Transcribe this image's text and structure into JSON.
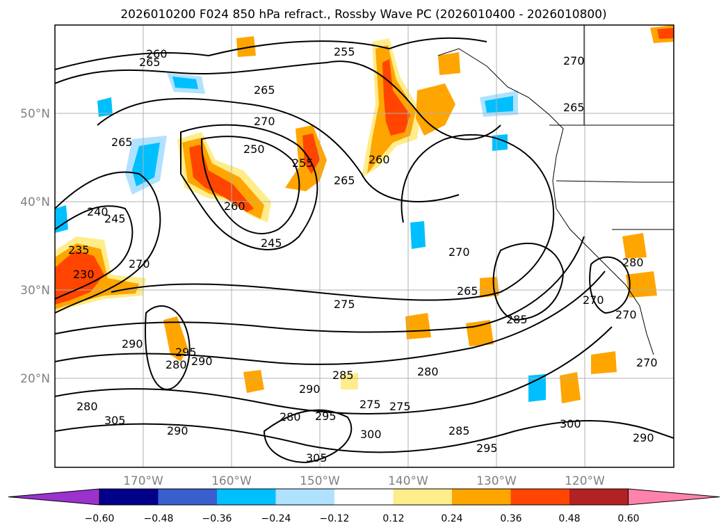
{
  "title": "2026010200 F024 850 hPa refract., Rossby Wave PC (2026010400 - 2026010800)",
  "lat_labels": [
    "50°N",
    "40°N",
    "30°N",
    "20°N"
  ],
  "lon_labels": [
    "170°W",
    "160°W",
    "150°W",
    "140°W",
    "130°W",
    "120°W"
  ],
  "colorbar": {
    "tick_labels": [
      "−0.60",
      "−0.48",
      "−0.36",
      "−0.24",
      "−0.12",
      "0.12",
      "0.24",
      "0.36",
      "0.48",
      "0.60"
    ],
    "colors": [
      "#9a32cd",
      "#00008b",
      "#3a5fcd",
      "#00bfff",
      "#b0e2ff",
      "#ffffff",
      "#ffec8b",
      "#ffa500",
      "#ff4500",
      "#b22222",
      "#ff82ab"
    ]
  },
  "contour_labels": [
    "260",
    "265",
    "255",
    "270",
    "265",
    "250",
    "255",
    "265",
    "260",
    "265",
    "270",
    "265",
    "240",
    "245",
    "260",
    "235",
    "230",
    "270",
    "245",
    "270",
    "275",
    "265",
    "280",
    "290",
    "295",
    "290",
    "280",
    "285",
    "280",
    "290",
    "275",
    "295",
    "300",
    "305",
    "285",
    "295",
    "285",
    "300",
    "290",
    "270",
    "275",
    "270",
    "280",
    "270",
    "305",
    "280",
    "290"
  ]
}
